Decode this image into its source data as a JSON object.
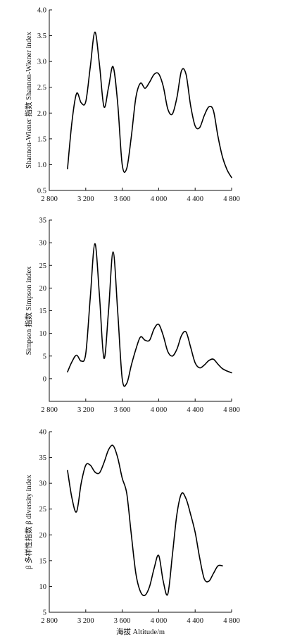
{
  "chart_data": [
    {
      "type": "line",
      "title": "",
      "xlabel": "",
      "ylabel": "Shannon-Wiener 指数 Shannon-Wiener index",
      "xlim": [
        2800,
        4800
      ],
      "ylim": [
        0.5,
        4.0
      ],
      "xticks": [
        2800,
        3200,
        3600,
        4000,
        4400,
        4800
      ],
      "xtick_labels": [
        "2 800",
        "3 200",
        "3 600",
        "4 000",
        "4 400",
        "4 800"
      ],
      "yticks": [
        0.5,
        1.0,
        1.5,
        2.0,
        2.5,
        3.0,
        3.5,
        4.0
      ],
      "ytick_labels": [
        "0.5",
        "1.0",
        "1.5",
        "2.0",
        "2.5",
        "3.0",
        "3.5",
        "4.0"
      ],
      "x": [
        3000,
        3050,
        3100,
        3150,
        3200,
        3250,
        3300,
        3350,
        3400,
        3450,
        3500,
        3550,
        3600,
        3650,
        3700,
        3750,
        3800,
        3850,
        3900,
        3950,
        4000,
        4050,
        4100,
        4150,
        4200,
        4250,
        4300,
        4350,
        4400,
        4450,
        4500,
        4550,
        4600,
        4650,
        4700,
        4750,
        4800
      ],
      "values": [
        0.92,
        1.85,
        2.38,
        2.2,
        2.22,
        2.9,
        3.57,
        2.95,
        2.12,
        2.5,
        2.9,
        2.2,
        1.0,
        0.93,
        1.55,
        2.3,
        2.58,
        2.48,
        2.6,
        2.75,
        2.76,
        2.52,
        2.08,
        1.98,
        2.3,
        2.82,
        2.75,
        2.15,
        1.75,
        1.72,
        1.95,
        2.12,
        2.05,
        1.55,
        1.15,
        0.9,
        0.75
      ]
    },
    {
      "type": "line",
      "title": "",
      "xlabel": "",
      "ylabel": "Simpson 指数 Simpson index",
      "xlim": [
        2800,
        4800
      ],
      "ylim": [
        -5,
        35
      ],
      "xticks": [
        2800,
        3200,
        3600,
        4000,
        4400,
        4800
      ],
      "xtick_labels": [
        "2 800",
        "3 200",
        "3 600",
        "4 000",
        "4 400",
        "4 800"
      ],
      "yticks": [
        0,
        5,
        10,
        15,
        20,
        25,
        30,
        35
      ],
      "ytick_labels": [
        "0",
        "5",
        "10",
        "15",
        "20",
        "25",
        "30",
        "35"
      ],
      "x": [
        3000,
        3050,
        3100,
        3150,
        3200,
        3250,
        3300,
        3350,
        3400,
        3450,
        3500,
        3550,
        3600,
        3650,
        3700,
        3750,
        3800,
        3850,
        3900,
        3950,
        4000,
        4050,
        4100,
        4150,
        4200,
        4250,
        4300,
        4350,
        4400,
        4450,
        4500,
        4550,
        4600,
        4650,
        4700,
        4750,
        4800
      ],
      "values": [
        1.5,
        3.8,
        5.2,
        3.9,
        5.5,
        18.0,
        29.8,
        18.5,
        4.5,
        15.0,
        28.0,
        15.0,
        0.0,
        -1.0,
        3.0,
        6.5,
        9.2,
        8.5,
        8.5,
        11.0,
        12.0,
        9.5,
        6.0,
        5.0,
        6.5,
        9.5,
        10.3,
        7.0,
        3.5,
        2.4,
        3.0,
        4.0,
        4.3,
        3.2,
        2.2,
        1.7,
        1.3
      ]
    },
    {
      "type": "line",
      "title": "",
      "xlabel": "海拔 Altitude/m",
      "ylabel": "β 多样性指数 β diversity index",
      "xlim": [
        2800,
        4800
      ],
      "ylim": [
        5,
        40
      ],
      "xticks": [
        2800,
        3200,
        3600,
        4000,
        4400,
        4800
      ],
      "xtick_labels": [
        "2 800",
        "3 200",
        "3 600",
        "4 000",
        "4 400",
        "4 800"
      ],
      "yticks": [
        5,
        10,
        15,
        20,
        25,
        30,
        35,
        40
      ],
      "ytick_labels": [
        "5",
        "10",
        "15",
        "20",
        "25",
        "30",
        "35",
        "40"
      ],
      "x": [
        3000,
        3050,
        3100,
        3150,
        3200,
        3250,
        3300,
        3350,
        3400,
        3450,
        3500,
        3550,
        3600,
        3650,
        3700,
        3750,
        3800,
        3850,
        3900,
        3950,
        4000,
        4050,
        4100,
        4150,
        4200,
        4250,
        4300,
        4350,
        4400,
        4450,
        4500,
        4550,
        4600,
        4650,
        4700
      ],
      "values": [
        32.5,
        27.0,
        24.5,
        30.0,
        33.5,
        33.5,
        32.2,
        32.0,
        34.0,
        36.5,
        37.3,
        35.0,
        31.0,
        28.0,
        20.0,
        12.5,
        9.0,
        8.3,
        10.0,
        13.5,
        16.0,
        11.0,
        8.5,
        16.0,
        24.0,
        28.0,
        27.0,
        24.0,
        20.5,
        15.5,
        11.5,
        11.0,
        12.5,
        14.0,
        14.0
      ]
    }
  ]
}
